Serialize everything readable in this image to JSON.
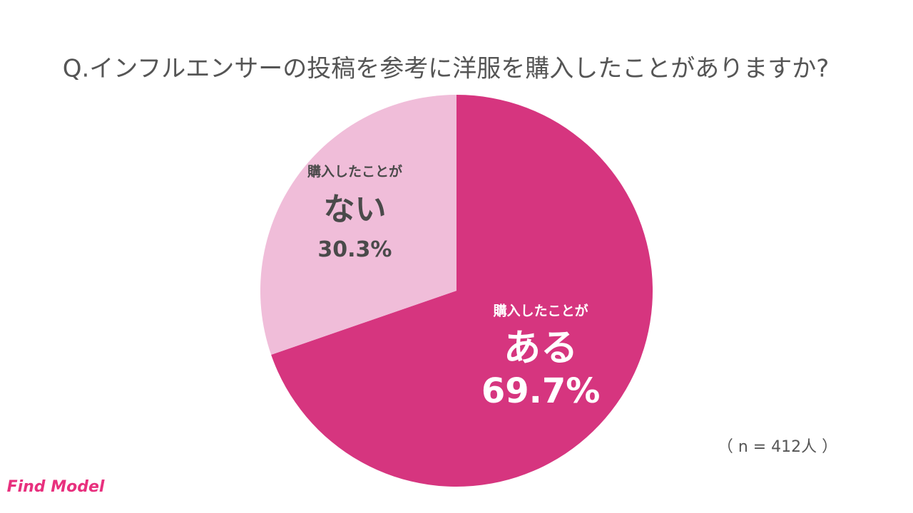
{
  "chart_data": {
    "type": "pie",
    "title": "Q.インフルエンサーの投稿を参考に洋服を購入したことがありますか?",
    "categories": [
      "ある",
      "ない"
    ],
    "category_prefixes": [
      "購入したことが",
      "購入したことが"
    ],
    "values": [
      69.7,
      30.3
    ],
    "value_labels": [
      "69.7%",
      "30.3%"
    ],
    "colors": [
      "#d6357f",
      "#f0bdd9"
    ],
    "label_colors": [
      "#ffffff",
      "#4a4a4a"
    ],
    "note": "（ n = 412人 ）",
    "brand": "Find Model"
  }
}
